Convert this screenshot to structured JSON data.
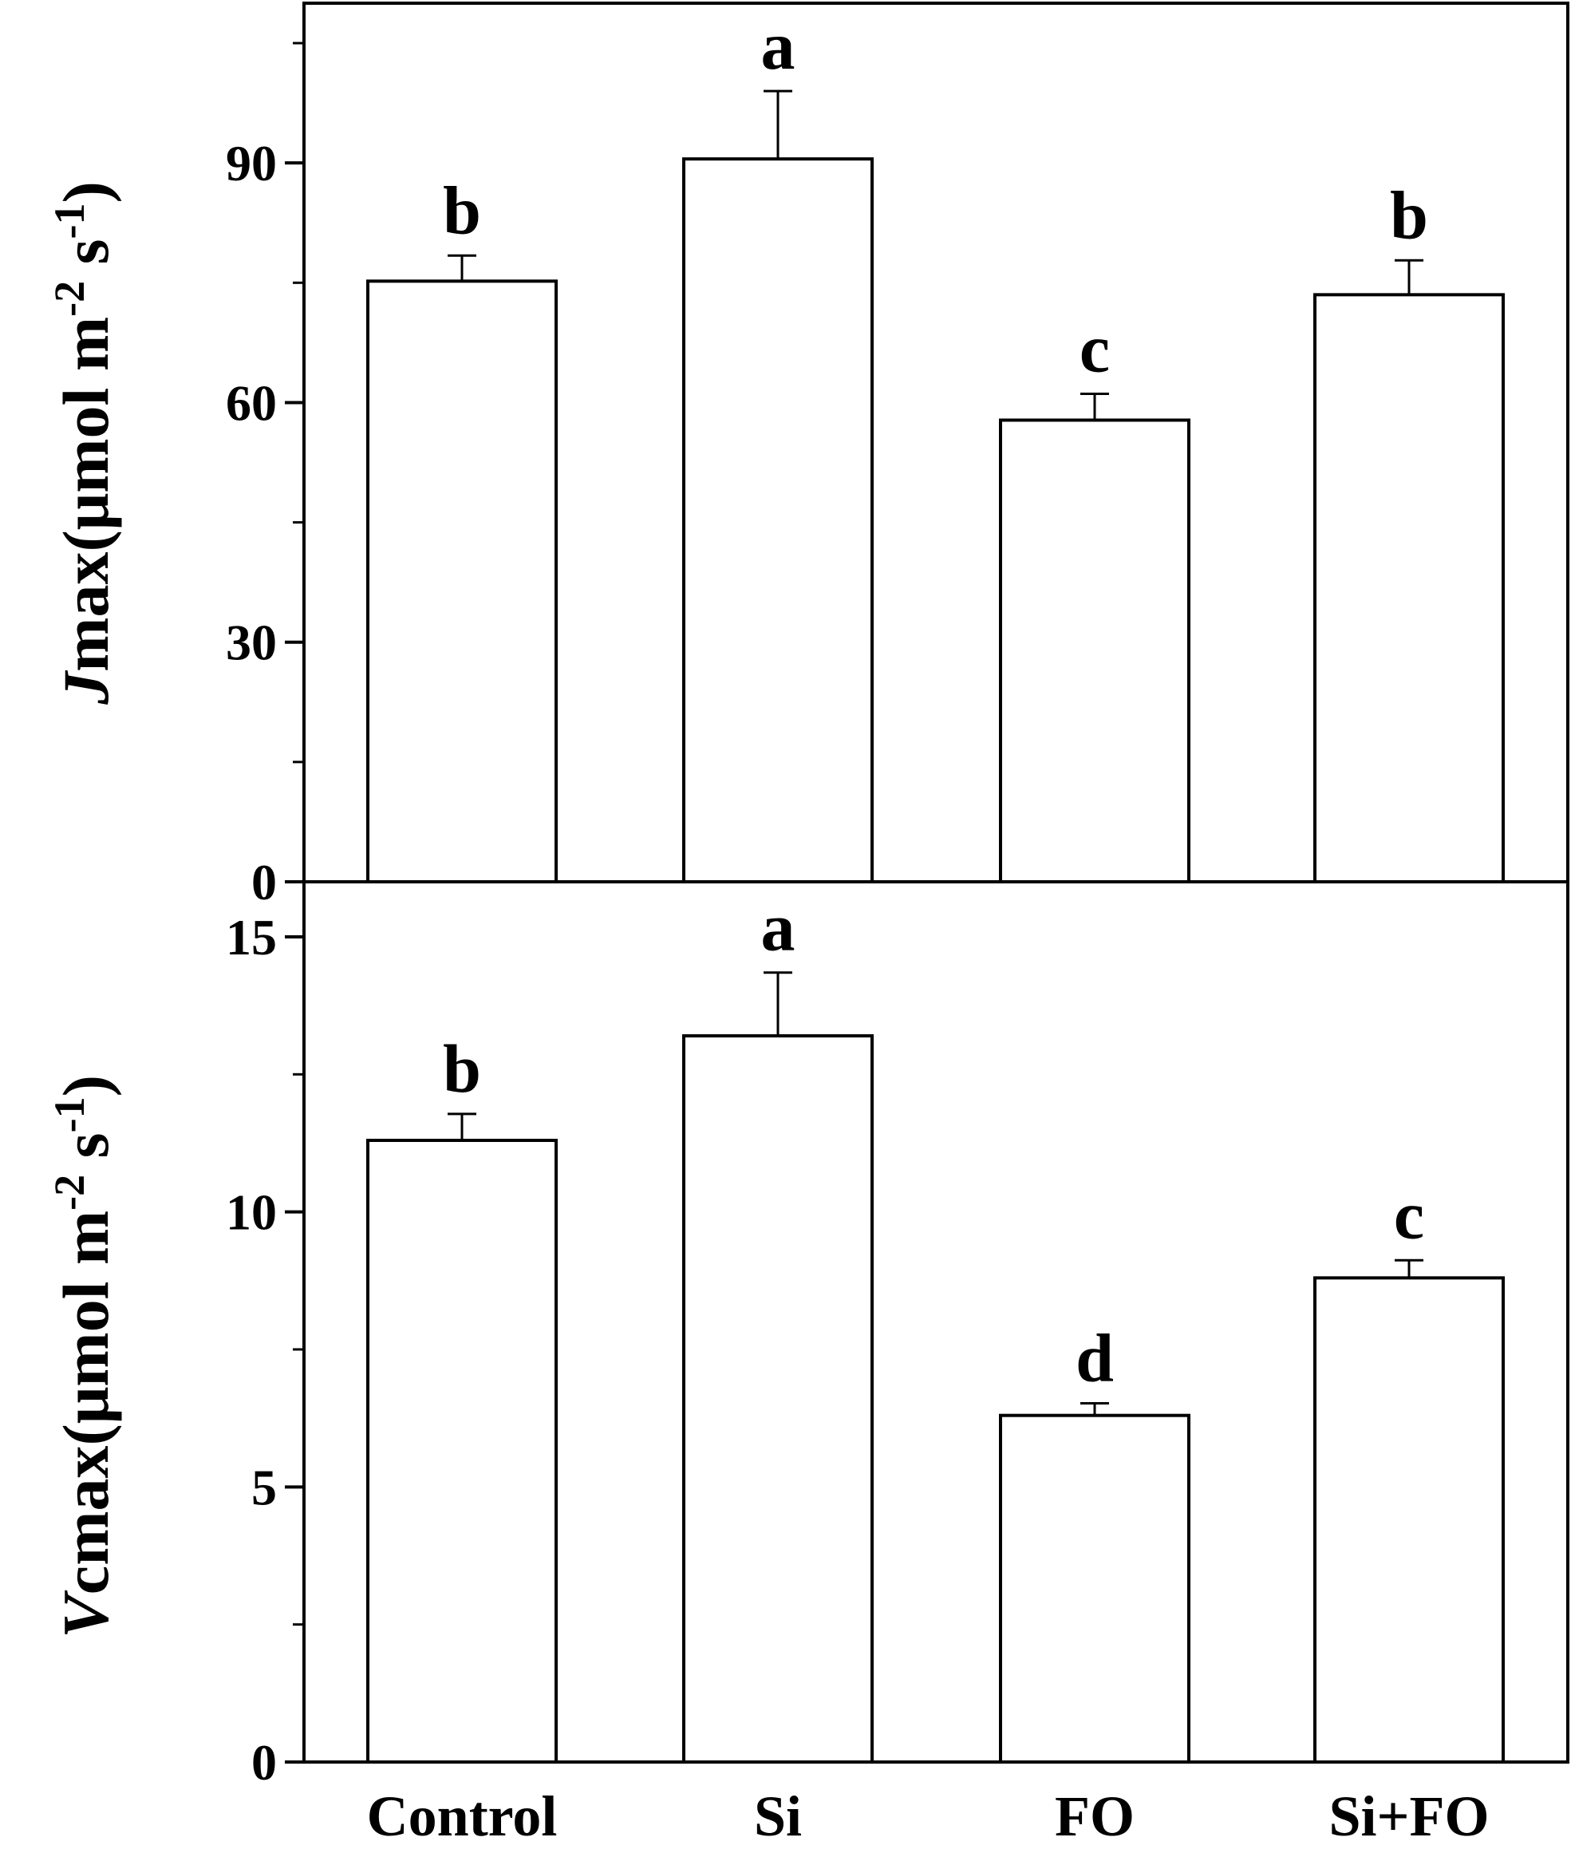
{
  "chart_data": [
    {
      "type": "bar",
      "panel": "top",
      "categories": [
        "Control",
        "Si",
        "FO",
        "Si+FO"
      ],
      "values": [
        75.2,
        90.5,
        57.8,
        73.5
      ],
      "errors": [
        3.2,
        8.5,
        3.3,
        4.3
      ],
      "significance": [
        "b",
        "a",
        "c",
        "b"
      ],
      "ylabel_italic": "J",
      "ylabel_rest": "max(μmol m",
      "ylabel_sup1": "-2",
      "ylabel_mid": " s",
      "ylabel_sup2": "-1",
      "ylabel_end": ")",
      "ylim": [
        0,
        110
      ],
      "yticks": [
        "0",
        "30",
        "60",
        "90"
      ],
      "ytick_values": [
        0,
        30,
        60,
        90
      ],
      "minor_tick_step": 15,
      "bar_fill": "#ffffff",
      "bar_stroke": "#000000"
    },
    {
      "type": "bar",
      "panel": "bottom",
      "categories": [
        "Control",
        "Si",
        "FO",
        "Si+FO"
      ],
      "values": [
        11.3,
        13.2,
        6.3,
        8.8
      ],
      "errors": [
        0.48,
        1.15,
        0.22,
        0.32
      ],
      "significance": [
        "b",
        "a",
        "d",
        "c"
      ],
      "ylabel_italic": "V",
      "ylabel_rest": "cmax(μmol m",
      "ylabel_sup1": "-2",
      "ylabel_mid": " s",
      "ylabel_sup2": "-1",
      "ylabel_end": ")",
      "ylim": [
        0,
        16
      ],
      "yticks": [
        "0",
        "5",
        "10",
        "15"
      ],
      "ytick_values": [
        0,
        5,
        10,
        15
      ],
      "minor_tick_step": 2.5,
      "bar_fill": "#ffffff",
      "bar_stroke": "#000000"
    }
  ]
}
